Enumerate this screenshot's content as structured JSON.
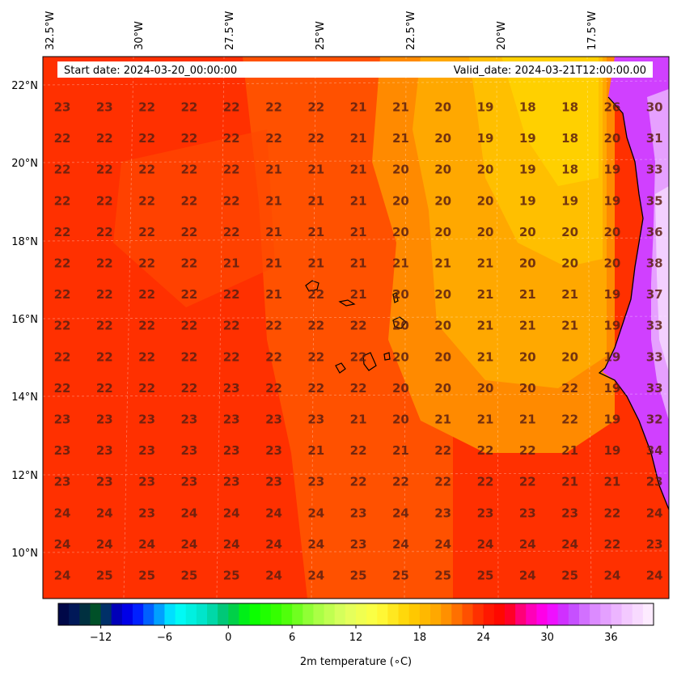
{
  "header": {
    "start_date": "Start date: 2024-03-20_00:00:00",
    "valid_date": "Valid_date: 2024-03-21T12:00:00.00"
  },
  "axes": {
    "lon_labels": [
      "32.5°W",
      "30°W",
      "27.5°W",
      "25°W",
      "22.5°W",
      "20°W",
      "17.5°W"
    ],
    "lat_labels": [
      "22°N",
      "20°N",
      "18°N",
      "16°N",
      "14°N",
      "12°N",
      "10°N"
    ]
  },
  "colorbar": {
    "label": "2m temperature (∘C)",
    "ticks": [
      "−12",
      "−6",
      "0",
      "6",
      "12",
      "18",
      "24",
      "30",
      "36"
    ],
    "tick_values": [
      -12,
      -6,
      0,
      6,
      12,
      18,
      24,
      30,
      36
    ],
    "range": [
      -16,
      40
    ]
  },
  "colors": {
    "background_field": "#ff2a00",
    "warm_field": "#ff5a00",
    "cool_field": "#ffb000",
    "hot_land": "#b44cff",
    "hottest_land": "#f3d0ff",
    "value_text": "#5a1f10"
  },
  "grid_values": [
    [
      23,
      23,
      22,
      22,
      22,
      22,
      22,
      21,
      21,
      20,
      19,
      18,
      18,
      26,
      30
    ],
    [
      22,
      22,
      22,
      22,
      22,
      22,
      22,
      21,
      21,
      20,
      19,
      19,
      18,
      20,
      31
    ],
    [
      22,
      22,
      22,
      22,
      22,
      21,
      21,
      21,
      20,
      20,
      20,
      19,
      18,
      19,
      33
    ],
    [
      22,
      22,
      22,
      22,
      22,
      21,
      21,
      21,
      20,
      20,
      20,
      19,
      19,
      19,
      35
    ],
    [
      22,
      22,
      22,
      22,
      22,
      21,
      21,
      21,
      20,
      20,
      20,
      20,
      20,
      20,
      36
    ],
    [
      22,
      22,
      22,
      22,
      21,
      21,
      21,
      21,
      21,
      21,
      21,
      20,
      20,
      20,
      38
    ],
    [
      22,
      22,
      22,
      22,
      22,
      21,
      22,
      21,
      20,
      20,
      21,
      21,
      21,
      19,
      37
    ],
    [
      22,
      22,
      22,
      22,
      22,
      22,
      22,
      22,
      20,
      20,
      21,
      21,
      21,
      19,
      33
    ],
    [
      22,
      22,
      22,
      22,
      22,
      22,
      22,
      22,
      20,
      20,
      21,
      20,
      20,
      19,
      33
    ],
    [
      22,
      22,
      22,
      22,
      23,
      22,
      22,
      22,
      20,
      20,
      20,
      20,
      22,
      19,
      33
    ],
    [
      23,
      23,
      23,
      23,
      23,
      23,
      23,
      21,
      20,
      21,
      21,
      21,
      22,
      19,
      32
    ],
    [
      23,
      23,
      23,
      23,
      23,
      23,
      21,
      22,
      21,
      22,
      22,
      22,
      21,
      19,
      34
    ],
    [
      23,
      23,
      23,
      23,
      23,
      23,
      23,
      22,
      22,
      22,
      22,
      22,
      21,
      21,
      23
    ],
    [
      24,
      24,
      23,
      24,
      24,
      24,
      24,
      23,
      24,
      23,
      23,
      23,
      23,
      22,
      24
    ],
    [
      24,
      24,
      24,
      24,
      24,
      24,
      24,
      23,
      24,
      24,
      24,
      24,
      24,
      22,
      23
    ],
    [
      24,
      25,
      25,
      25,
      25,
      24,
      24,
      25,
      25,
      25,
      25,
      24,
      25,
      24,
      24
    ]
  ]
}
